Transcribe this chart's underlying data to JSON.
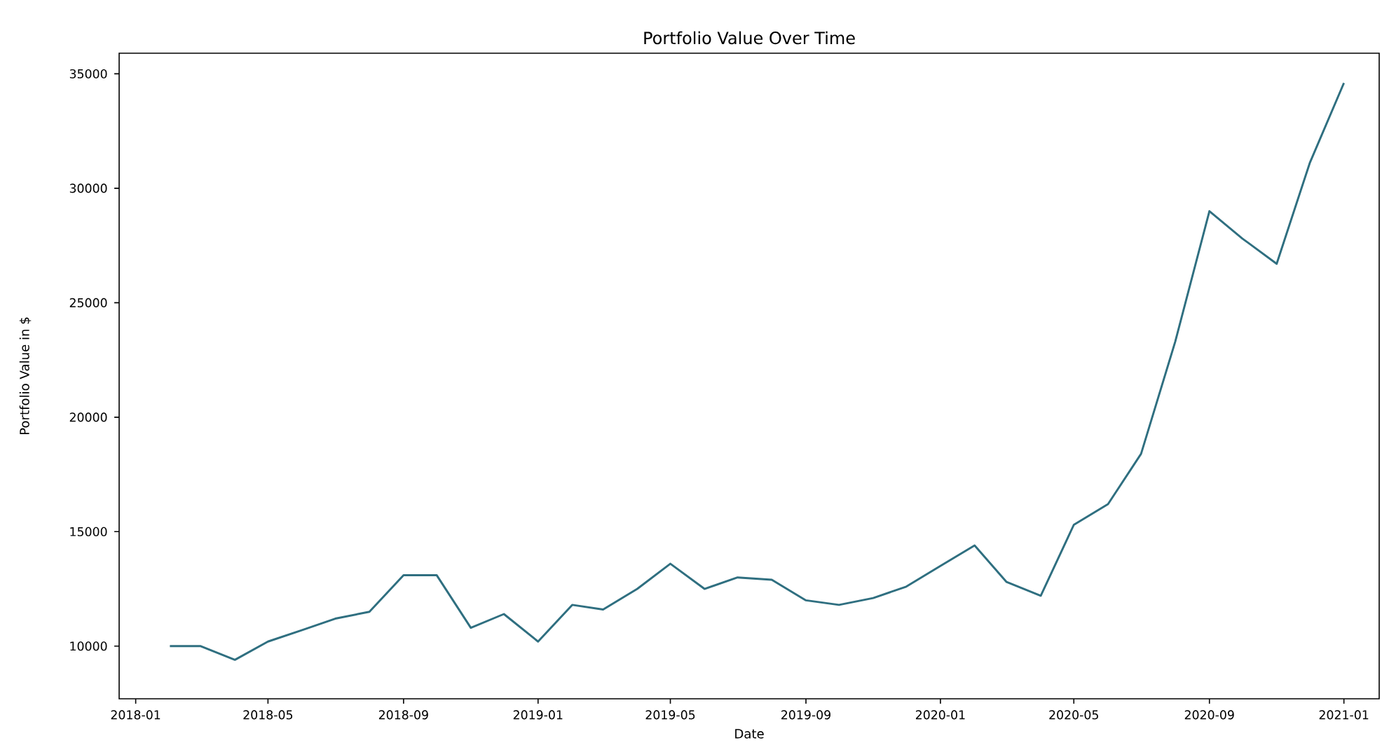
{
  "chart_data": {
    "type": "line",
    "title": "Portfolio Value Over Time",
    "xlabel": "Date",
    "ylabel": "Portfolio Value in $",
    "x": [
      "2018-02",
      "2018-03",
      "2018-04",
      "2018-05",
      "2018-06",
      "2018-07",
      "2018-08",
      "2018-09",
      "2018-10",
      "2018-11",
      "2018-12",
      "2019-01",
      "2019-02",
      "2019-03",
      "2019-04",
      "2019-05",
      "2019-06",
      "2019-07",
      "2019-08",
      "2019-09",
      "2019-10",
      "2019-11",
      "2019-12",
      "2020-01",
      "2020-02",
      "2020-03",
      "2020-04",
      "2020-05",
      "2020-06",
      "2020-07",
      "2020-08",
      "2020-09",
      "2020-10",
      "2020-11",
      "2020-12",
      "2021-01"
    ],
    "series": [
      {
        "color": "#2f6f80",
        "values": [
          10000,
          10000,
          9400,
          10200,
          10700,
          11200,
          11500,
          13100,
          13100,
          10800,
          11400,
          10200,
          11800,
          11600,
          12500,
          13600,
          12500,
          13000,
          12900,
          12000,
          11800,
          12100,
          12600,
          13500,
          14400,
          12800,
          12200,
          15300,
          16200,
          18400,
          23300,
          29000,
          27800,
          26700,
          31100,
          34600
        ]
      }
    ],
    "xlim": [
      "2017-12-17",
      "2021-02-02"
    ],
    "ylim": [
      7700,
      35900
    ],
    "xticks": [
      "2018-01",
      "2018-05",
      "2018-09",
      "2019-01",
      "2019-05",
      "2019-09",
      "2020-01",
      "2020-05",
      "2020-09",
      "2021-01"
    ],
    "yticks": [
      10000,
      15000,
      20000,
      25000,
      30000,
      35000
    ]
  }
}
